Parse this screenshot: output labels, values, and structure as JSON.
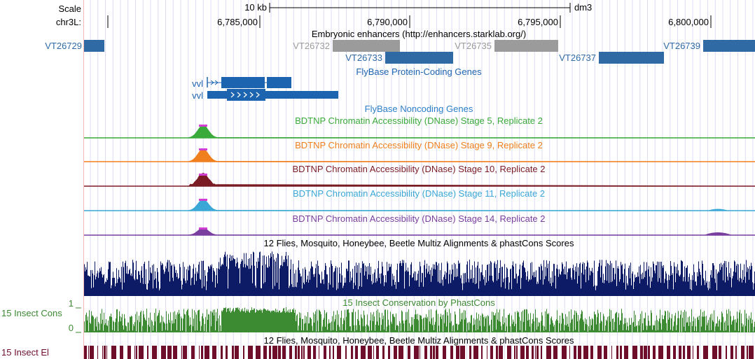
{
  "ruler": {
    "scale_label": "Scale",
    "scale_bar_label": "10 kb",
    "assembly": "dm3",
    "chrom_label": "chr3L:",
    "positions": [
      "6,785,000",
      "6,790,000",
      "6,795,000",
      "6,800,000"
    ]
  },
  "tracks": {
    "enhancers": {
      "title": "Embryonic enhancers (http://enhancers.starklab.org/)",
      "items": [
        {
          "name": "VT26729",
          "color": "#2f6aa5"
        },
        {
          "name": "VT26732",
          "color": "#9b9b9b"
        },
        {
          "name": "VT26733",
          "color": "#2f6aa5"
        },
        {
          "name": "VT26735",
          "color": "#9b9b9b"
        },
        {
          "name": "VT26737",
          "color": "#2f6aa5"
        },
        {
          "name": "VT26739",
          "color": "#2f6aa5"
        }
      ]
    },
    "flybase_coding": {
      "title": "FlyBase Protein-Coding Genes",
      "color": "#1d64b0",
      "genes": [
        "vvl",
        "vvl"
      ]
    },
    "flybase_noncoding": {
      "title": "FlyBase Noncoding Genes",
      "color": "#2c7fc8"
    },
    "dnase": [
      {
        "title": "BDTNP Chromatin Accessibility (DNase) Stage 5, Replicate 2",
        "color": "#3aaa3a"
      },
      {
        "title": "BDTNP Chromatin Accessibility (DNase) Stage 9, Replicate 2",
        "color": "#f07f1e"
      },
      {
        "title": "BDTNP Chromatin Accessibility (DNase) Stage 10, Replicate 2",
        "color": "#7b1c25"
      },
      {
        "title": "BDTNP Chromatin Accessibility (DNase) Stage 11, Replicate 2",
        "color": "#3aa7d6"
      },
      {
        "title": "BDTNP Chromatin Accessibility (DNase) Stage 14, Replicate 2",
        "color": "#7a3f9e"
      }
    ],
    "multiz": {
      "title": "12 Flies, Mosquito, Honeybee, Beetle Multiz Alignments & phastCons Scores",
      "color": "#0d1a66"
    },
    "cons15": {
      "title": "15 Insect Conservation by PhastCons",
      "label": "15 Insect Cons",
      "axis_max": "1",
      "axis_min": "0",
      "color": "#3c8a32"
    },
    "elements": {
      "title": "12 Flies, Mosquito, Honeybee, Beetle Multiz Alignments & phastCons Scores",
      "label": "15 Insect El",
      "color": "#6e0e2a"
    }
  }
}
